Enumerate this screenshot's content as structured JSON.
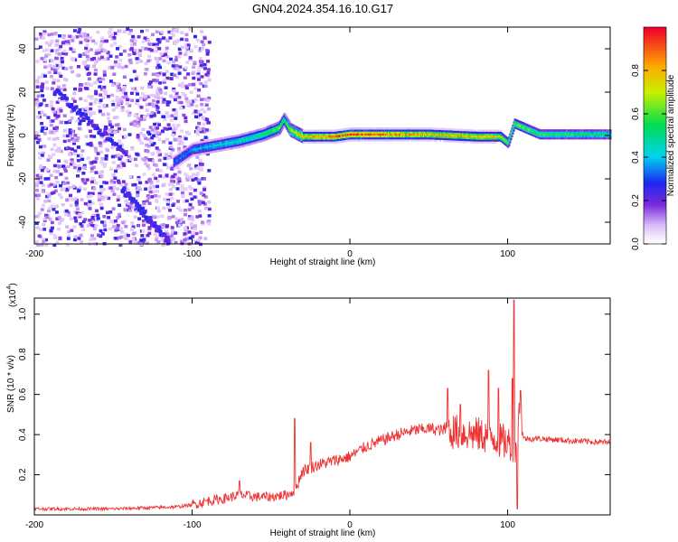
{
  "title": "GN04.2024.354.16.10.G17",
  "chart_data": [
    {
      "type": "heatmap",
      "xlabel": "Height of straight line (km)",
      "ylabel": "Frequency (Hz)",
      "xlim": [
        -200,
        165
      ],
      "ylim": [
        -50,
        50
      ],
      "xticks": [
        -200,
        -100,
        0,
        100
      ],
      "yticks": [
        -40,
        -20,
        0,
        20,
        40
      ],
      "colorbar": {
        "label": "Normalized spectral amplitude",
        "range": [
          0,
          1
        ],
        "ticks": [
          0.0,
          0.2,
          0.4,
          0.6,
          0.8
        ]
      },
      "features": {
        "diagonal_streaks": [
          {
            "x": [
              -188,
              -143
            ],
            "y": [
              22,
              -8
            ]
          },
          {
            "x": [
              -145,
              -116
            ],
            "y": [
              -24,
              -48
            ]
          }
        ],
        "main_ridge": {
          "x": [
            -112,
            -100,
            -85,
            -70,
            -55,
            -45,
            -42,
            -38,
            -30,
            -20,
            -10,
            0,
            20,
            50,
            80,
            95,
            100,
            104,
            120,
            165
          ],
          "y": [
            -12,
            -6,
            -4,
            -2,
            1,
            4,
            8,
            3,
            0,
            0,
            0,
            1,
            1,
            1,
            0,
            0,
            -3,
            6,
            1,
            1
          ],
          "amp": [
            0.35,
            0.4,
            0.45,
            0.5,
            0.55,
            0.7,
            0.6,
            0.75,
            0.85,
            0.9,
            0.95,
            1.0,
            0.95,
            0.85,
            0.85,
            0.8,
            0.6,
            0.7,
            0.6,
            0.55
          ]
        }
      }
    },
    {
      "type": "line",
      "xlabel": "Height of straight line (km)",
      "ylabel": "SNR (10 * v/v)",
      "yscale_label": "(x10",
      "yscale_exp": "4",
      "xlim": [
        -200,
        165
      ],
      "ylim": [
        0,
        1.08
      ],
      "xticks": [
        -200,
        -100,
        0,
        100
      ],
      "yticks": [
        0.2,
        0.4,
        0.6,
        0.8,
        1.0
      ],
      "color": "#ee3333",
      "series": [
        {
          "x": [
            -200,
            -150,
            -110,
            -100,
            -90,
            -80,
            -70,
            -60,
            -50,
            -40,
            -35,
            -30,
            -20,
            -10,
            0,
            10,
            20,
            30,
            40,
            50,
            60,
            70,
            80,
            90,
            95,
            100,
            105,
            108,
            110,
            120,
            140,
            165
          ],
          "y": [
            0.03,
            0.03,
            0.04,
            0.05,
            0.07,
            0.08,
            0.1,
            0.09,
            0.09,
            0.1,
            0.12,
            0.22,
            0.25,
            0.27,
            0.29,
            0.34,
            0.37,
            0.4,
            0.42,
            0.43,
            0.42,
            0.41,
            0.4,
            0.39,
            0.37,
            0.36,
            0.35,
            0.55,
            0.38,
            0.38,
            0.37,
            0.36
          ],
          "spikes": [
            {
              "x": -70,
              "y": 0.17
            },
            {
              "x": -35,
              "y": 0.48
            },
            {
              "x": -25,
              "y": 0.36
            },
            {
              "x": 62,
              "y": 0.63
            },
            {
              "x": 70,
              "y": 0.55
            },
            {
              "x": 88,
              "y": 0.72
            },
            {
              "x": 94,
              "y": 0.63
            },
            {
              "x": 103,
              "y": 0.68
            },
            {
              "x": 104,
              "y": 1.07
            },
            {
              "x": 108,
              "y": 0.62
            },
            {
              "x": 106,
              "y": 0.03
            }
          ]
        }
      ]
    }
  ]
}
